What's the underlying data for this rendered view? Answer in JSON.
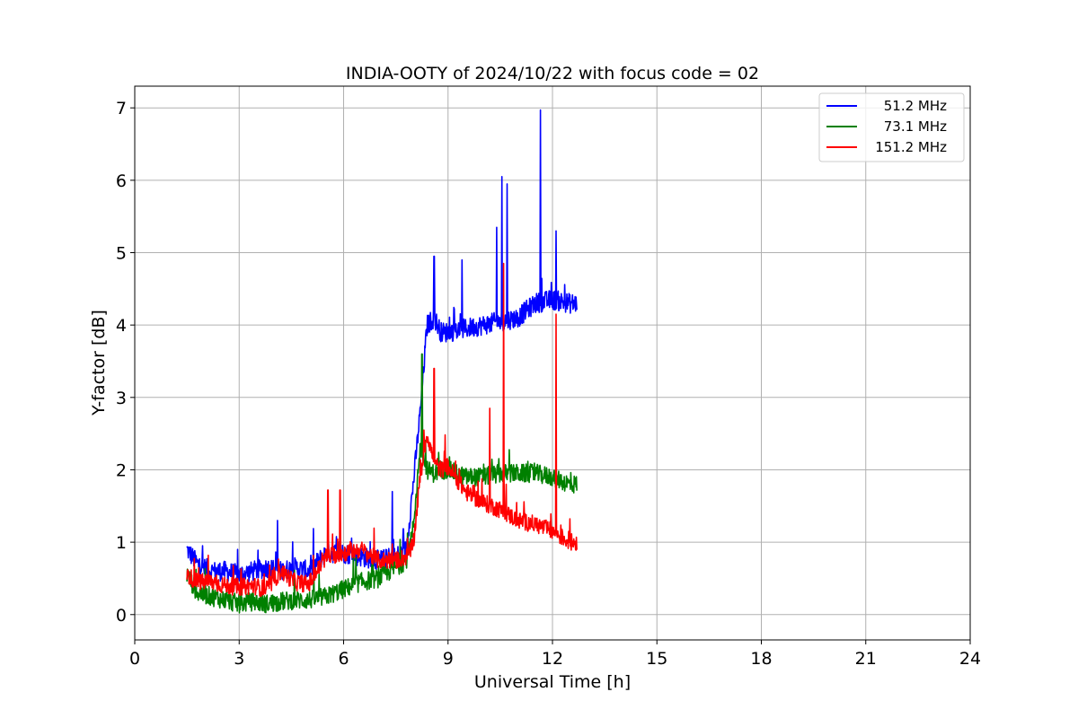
{
  "chart_data": {
    "type": "line",
    "title": "INDIA-OOTY of 2024/10/22 with focus code = 02",
    "xlabel": "Universal Time [h]",
    "ylabel": "Y-factor [dB]",
    "xlim": [
      0,
      24
    ],
    "ylim": [
      -0.35,
      7.3
    ],
    "xticks": [
      "0",
      "3",
      "6",
      "9",
      "12",
      "15",
      "18",
      "21",
      "24"
    ],
    "yticks": [
      "0",
      "1",
      "2",
      "3",
      "4",
      "5",
      "6",
      "7"
    ],
    "grid": true,
    "legend_position": "top-right",
    "series": [
      {
        "name": "51.2 MHz",
        "color": "#0000ff",
        "x": [
          1.5,
          1.8,
          2.2,
          2.6,
          3.0,
          3.4,
          3.8,
          4.2,
          4.6,
          5.0,
          5.5,
          6.0,
          6.5,
          7.0,
          7.5,
          7.8,
          8.0,
          8.2,
          8.4,
          8.6,
          8.8,
          9.0,
          9.5,
          10.0,
          10.5,
          11.0,
          11.5,
          12.0,
          12.5,
          12.7
        ],
        "y": [
          0.9,
          0.7,
          0.6,
          0.6,
          0.55,
          0.6,
          0.65,
          0.6,
          0.65,
          0.6,
          0.85,
          0.85,
          0.8,
          0.75,
          0.8,
          0.9,
          1.8,
          2.8,
          4.0,
          4.1,
          3.9,
          3.9,
          3.95,
          4.0,
          4.05,
          4.1,
          4.3,
          4.35,
          4.3,
          4.3
        ]
      },
      {
        "name": "73.1 MHz",
        "color": "#008000",
        "x": [
          1.5,
          1.8,
          2.2,
          2.6,
          3.0,
          3.4,
          3.8,
          4.2,
          4.6,
          5.0,
          5.5,
          6.0,
          6.5,
          7.0,
          7.5,
          7.8,
          8.0,
          8.2,
          8.4,
          8.6,
          8.8,
          9.0,
          9.5,
          10.0,
          10.5,
          11.0,
          11.5,
          12.0,
          12.5,
          12.7
        ],
        "y": [
          0.55,
          0.3,
          0.25,
          0.2,
          0.15,
          0.18,
          0.15,
          0.18,
          0.2,
          0.2,
          0.25,
          0.35,
          0.45,
          0.5,
          0.65,
          0.75,
          1.2,
          2.3,
          2.0,
          1.95,
          2.0,
          2.0,
          1.9,
          1.9,
          1.95,
          1.95,
          1.95,
          1.9,
          1.8,
          1.8
        ]
      },
      {
        "name": "151.2 MHz",
        "color": "#ff0000",
        "x": [
          1.5,
          1.8,
          2.2,
          2.6,
          3.0,
          3.4,
          3.8,
          4.2,
          4.6,
          5.0,
          5.5,
          6.0,
          6.5,
          7.0,
          7.5,
          7.8,
          8.0,
          8.2,
          8.4,
          8.6,
          8.8,
          9.0,
          9.5,
          10.0,
          10.5,
          11.0,
          11.5,
          12.0,
          12.5,
          12.7
        ],
        "y": [
          0.55,
          0.45,
          0.45,
          0.4,
          0.38,
          0.4,
          0.35,
          0.6,
          0.45,
          0.42,
          0.8,
          0.85,
          0.9,
          0.75,
          0.75,
          0.8,
          0.95,
          1.9,
          2.5,
          2.1,
          2.0,
          2.05,
          1.7,
          1.55,
          1.45,
          1.3,
          1.25,
          1.15,
          1.0,
          1.0
        ]
      }
    ],
    "spikes": [
      {
        "series": 0,
        "x": 4.1,
        "y": 1.3
      },
      {
        "series": 0,
        "x": 7.4,
        "y": 1.7
      },
      {
        "series": 0,
        "x": 8.6,
        "y": 4.95
      },
      {
        "series": 0,
        "x": 9.4,
        "y": 4.9
      },
      {
        "series": 0,
        "x": 10.4,
        "y": 5.35
      },
      {
        "series": 0,
        "x": 10.55,
        "y": 6.05
      },
      {
        "series": 0,
        "x": 10.7,
        "y": 5.95
      },
      {
        "series": 0,
        "x": 11.65,
        "y": 6.97
      },
      {
        "series": 0,
        "x": 12.1,
        "y": 5.3
      },
      {
        "series": 1,
        "x": 8.25,
        "y": 3.6
      },
      {
        "series": 2,
        "x": 5.55,
        "y": 1.72
      },
      {
        "series": 2,
        "x": 5.9,
        "y": 1.72
      },
      {
        "series": 2,
        "x": 8.6,
        "y": 3.4
      },
      {
        "series": 2,
        "x": 10.2,
        "y": 2.85
      },
      {
        "series": 2,
        "x": 10.6,
        "y": 4.85
      },
      {
        "series": 2,
        "x": 12.1,
        "y": 4.15
      }
    ]
  }
}
